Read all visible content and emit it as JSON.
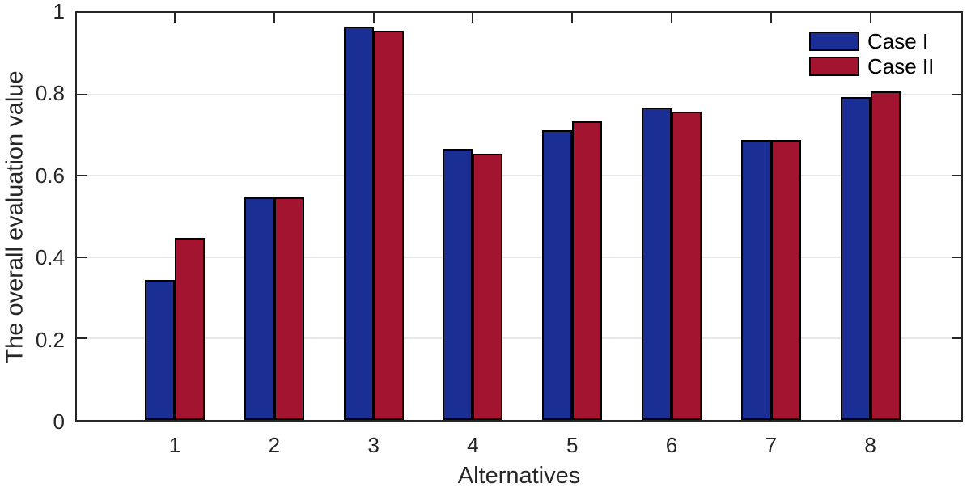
{
  "chart_data": {
    "type": "bar",
    "title": "",
    "xlabel": "Alternatives",
    "ylabel": "The overall evaluation value",
    "categories": [
      "1",
      "2",
      "3",
      "4",
      "5",
      "6",
      "7",
      "8"
    ],
    "series": [
      {
        "name": "Case I",
        "color": "#1b2e93",
        "values": [
          0.343,
          0.547,
          0.967,
          0.666,
          0.712,
          0.768,
          0.688,
          0.793
        ]
      },
      {
        "name": "Case II",
        "color": "#a2142f",
        "values": [
          0.447,
          0.547,
          0.957,
          0.654,
          0.734,
          0.757,
          0.688,
          0.807
        ]
      }
    ],
    "ylim": [
      0,
      1
    ],
    "ytick_values": [
      0,
      0.2,
      0.4,
      0.6,
      0.8,
      1
    ],
    "ytick_labels": [
      "0",
      "0.2",
      "0.4",
      "0.6",
      "0.8",
      "1"
    ],
    "grid": "horizontal",
    "gridline_color": "#e8e8e8",
    "axis_color": "#262626",
    "bar_outline_color": "#000000",
    "legend_position": "top-right",
    "legend_items": [
      "Case I",
      "Case II"
    ]
  }
}
